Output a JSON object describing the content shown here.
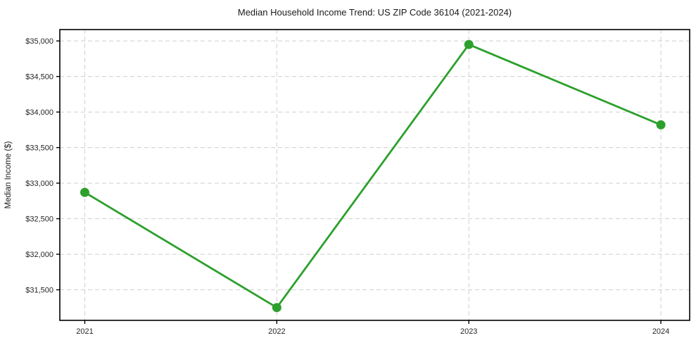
{
  "chart_data": {
    "type": "line",
    "title": "Median Household Income Trend: US ZIP Code 36104 (2021-2024)",
    "ylabel": "Median Income ($)",
    "xlabel": "",
    "categories": [
      2021,
      2022,
      2023,
      2024
    ],
    "x_tick_labels": [
      "2021",
      "2022",
      "2023",
      "2024"
    ],
    "series": [
      {
        "name": "Median Household Income",
        "values": [
          32870,
          31250,
          34950,
          33820
        ]
      }
    ],
    "yticks": [
      31500,
      32000,
      32500,
      33000,
      33500,
      34000,
      34500,
      35000
    ],
    "ytick_labels": [
      "$31,500",
      "$32,000",
      "$32,500",
      "$33,000",
      "$33,500",
      "$34,000",
      "$34,500",
      "$35,000"
    ],
    "ylim": [
      31070,
      35160
    ],
    "xlim": [
      2020.87,
      2024.15
    ],
    "grid": "on",
    "grid_style": "dashed",
    "legend": "none",
    "colors": {
      "line": "#2ca02c",
      "marker": "#2ca02c",
      "grid": "#cfcfcf",
      "frame": "#000000",
      "background": "#ffffff",
      "text": "#262626"
    }
  }
}
